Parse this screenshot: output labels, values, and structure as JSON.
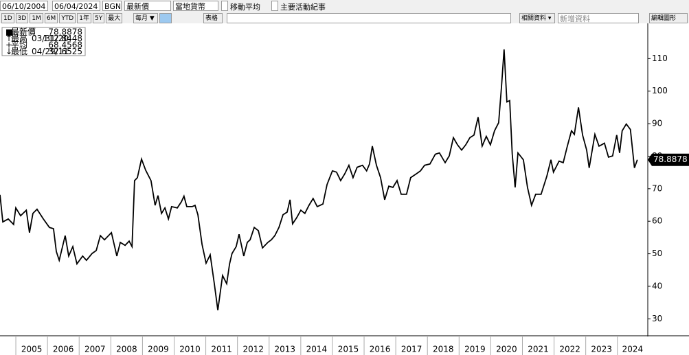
{
  "toolbar": {
    "start_date": "06/10/2004",
    "end_date": "06/04/2024",
    "security": "BGN",
    "field": "最新價",
    "currency": "當地貨幣",
    "moving_average": "移動平均",
    "events": "主要活動紀事",
    "ranges": [
      "1D",
      "3D",
      "1M",
      "6M",
      "YTD",
      "1年",
      "5Y",
      "最大"
    ],
    "period": "每月 ▼",
    "table": "表格",
    "related": "相關資料 ▾",
    "add_data": "新增資料",
    "edit_chart": "編輯圖形"
  },
  "chart_data": {
    "type": "line",
    "color": "#000000",
    "stats": [
      {
        "name": "最新價",
        "value": 78.8878
      },
      {
        "name": "最高",
        "date": "03/31/20",
        "value": 112.8448
      },
      {
        "name": "平均",
        "value": 68.4568
      },
      {
        "name": "最低",
        "date": "04/29/11",
        "value": 32.6525
      }
    ],
    "x": [
      2004.5,
      2004.59,
      2004.76,
      2004.93,
      2005.0,
      2005.15,
      2005.33,
      2005.43,
      2005.54,
      2005.67,
      2005.87,
      2006.06,
      2006.19,
      2006.28,
      2006.37,
      2006.56,
      2006.67,
      2006.8,
      2006.93,
      2007.11,
      2007.23,
      2007.41,
      2007.54,
      2007.67,
      2007.8,
      2008.02,
      2008.19,
      2008.3,
      2008.45,
      2008.58,
      2008.67,
      2008.75,
      2008.84,
      2008.97,
      2009.1,
      2009.27,
      2009.4,
      2009.49,
      2009.6,
      2009.71,
      2009.82,
      2009.92,
      2010.1,
      2010.23,
      2010.31,
      2010.4,
      2010.57,
      2010.66,
      2010.75,
      2010.88,
      2011.01,
      2011.14,
      2011.27,
      2011.38,
      2011.53,
      2011.66,
      2011.75,
      2011.83,
      2011.96,
      2012.05,
      2012.2,
      2012.31,
      2012.4,
      2012.53,
      2012.66,
      2012.79,
      2012.96,
      2013.07,
      2013.18,
      2013.31,
      2013.44,
      2013.57,
      2013.66,
      2013.74,
      2013.87,
      2014.0,
      2014.13,
      2014.26,
      2014.39,
      2014.52,
      2014.7,
      2014.83,
      2015.0,
      2015.13,
      2015.26,
      2015.39,
      2015.52,
      2015.65,
      2015.78,
      2015.95,
      2016.08,
      2016.17,
      2016.26,
      2016.39,
      2016.52,
      2016.65,
      2016.78,
      2016.91,
      2017.04,
      2017.17,
      2017.34,
      2017.47,
      2017.65,
      2017.78,
      2017.91,
      2018.08,
      2018.25,
      2018.38,
      2018.56,
      2018.69,
      2018.82,
      2018.95,
      2019.08,
      2019.21,
      2019.34,
      2019.47,
      2019.6,
      2019.73,
      2019.86,
      2019.99,
      2020.12,
      2020.25,
      2020.34,
      2020.42,
      2020.51,
      2020.6,
      2020.68,
      2020.77,
      2020.86,
      2021.03,
      2021.16,
      2021.29,
      2021.42,
      2021.59,
      2021.77,
      2021.9,
      2021.98,
      2022.16,
      2022.29,
      2022.42,
      2022.55,
      2022.64,
      2022.77,
      2022.9,
      2023.03,
      2023.11,
      2023.29,
      2023.42,
      2023.5,
      2023.59,
      2023.72,
      2023.85,
      2023.98,
      2024.07,
      2024.15,
      2024.28,
      2024.41,
      2024.54,
      2024.63
    ],
    "values": [
      68.1,
      59.8,
      60.7,
      59.0,
      64.1,
      61.7,
      63.4,
      56.5,
      62.4,
      63.7,
      60.7,
      58.1,
      57.7,
      50.7,
      48.0,
      55.6,
      49.3,
      52.2,
      46.9,
      49.3,
      48.0,
      50.1,
      51.0,
      55.6,
      54.3,
      56.5,
      49.3,
      53.5,
      52.6,
      53.9,
      52.2,
      72.5,
      73.4,
      79.1,
      75.7,
      72.5,
      64.9,
      67.9,
      62.4,
      64.1,
      60.7,
      64.5,
      64.1,
      66.0,
      67.7,
      64.5,
      64.5,
      64.9,
      62.0,
      52.9,
      47.1,
      49.7,
      40.8,
      32.6525,
      43.3,
      40.8,
      46.9,
      50.1,
      52.2,
      56.0,
      49.3,
      53.5,
      54.3,
      58.1,
      57.1,
      51.8,
      53.5,
      54.3,
      55.6,
      58.1,
      62.0,
      62.8,
      66.6,
      59.2,
      61.1,
      63.4,
      62.4,
      64.9,
      67.0,
      64.5,
      65.3,
      71.3,
      75.5,
      75.1,
      72.5,
      74.6,
      77.2,
      73.4,
      76.6,
      77.2,
      75.5,
      77.6,
      83.1,
      77.2,
      73.4,
      66.6,
      70.8,
      70.4,
      72.5,
      68.3,
      68.3,
      73.4,
      74.6,
      75.5,
      77.2,
      77.6,
      80.6,
      81.0,
      78.0,
      80.1,
      85.7,
      83.5,
      81.9,
      83.5,
      85.7,
      86.5,
      92.0,
      83.1,
      86.1,
      83.5,
      87.8,
      90.3,
      101.5,
      112.8448,
      96.7,
      97.1,
      80.6,
      70.4,
      81.0,
      78.9,
      70.4,
      64.9,
      68.3,
      68.3,
      73.8,
      78.9,
      75.1,
      78.5,
      78.0,
      83.1,
      87.8,
      86.7,
      95.0,
      86.5,
      81.9,
      76.4,
      86.7,
      83.1,
      83.5,
      84.0,
      79.7,
      80.1,
      86.5,
      81.0,
      87.8,
      89.9,
      88.2,
      76.4,
      78.8878
    ],
    "xlim": [
      2004.5,
      2024.96
    ],
    "xticks": [
      2005,
      2006,
      2007,
      2008,
      2009,
      2010,
      2011,
      2012,
      2013,
      2014,
      2015,
      2016,
      2017,
      2018,
      2019,
      2020,
      2021,
      2022,
      2023,
      2024
    ],
    "ylim": [
      25,
      120
    ],
    "yticks": [
      30,
      40,
      50,
      60,
      70,
      80,
      90,
      100,
      110
    ]
  }
}
